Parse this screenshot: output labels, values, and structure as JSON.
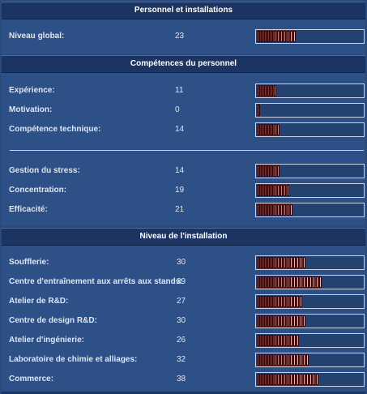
{
  "sections": [
    {
      "title": "Personnel et installations",
      "rows": [
        {
          "label": "Niveau global:",
          "value": "23",
          "level": 23
        }
      ]
    },
    {
      "title": "Compétences du personnel",
      "rows": [
        {
          "label": "Expérience:",
          "value": "11",
          "level": 11
        },
        {
          "label": "Motivation:",
          "value": "0",
          "level": 0
        },
        {
          "label": "Compétence technique:",
          "value": "14",
          "level": 14
        },
        {
          "label": "Gestion du stress:",
          "value": "14",
          "level": 14
        },
        {
          "label": "Concentration:",
          "value": "19",
          "level": 19
        },
        {
          "label": "Efficacité:",
          "value": "21",
          "level": 21
        }
      ]
    },
    {
      "title": "Niveau de l'installation",
      "rows": [
        {
          "label": "Soufflerie:",
          "value": "30",
          "level": 30
        },
        {
          "label": "Centre d'entraînement aux arrêts aux stands:",
          "value": "39",
          "level": 39
        },
        {
          "label": "Atelier de R&D:",
          "value": "27",
          "level": 27
        },
        {
          "label": "Centre de design R&D:",
          "value": "30",
          "level": 30
        },
        {
          "label": "Atelier d'ingénierie:",
          "value": "26",
          "level": 26
        },
        {
          "label": "Laboratoire de chimie et alliages:",
          "value": "32",
          "level": 32
        },
        {
          "label": "Commerce:",
          "value": "38",
          "level": 38
        }
      ]
    }
  ],
  "segment_colors": {
    "low": "#e01010",
    "mid": "#ff7a1a",
    "high": "#ffd21f"
  }
}
